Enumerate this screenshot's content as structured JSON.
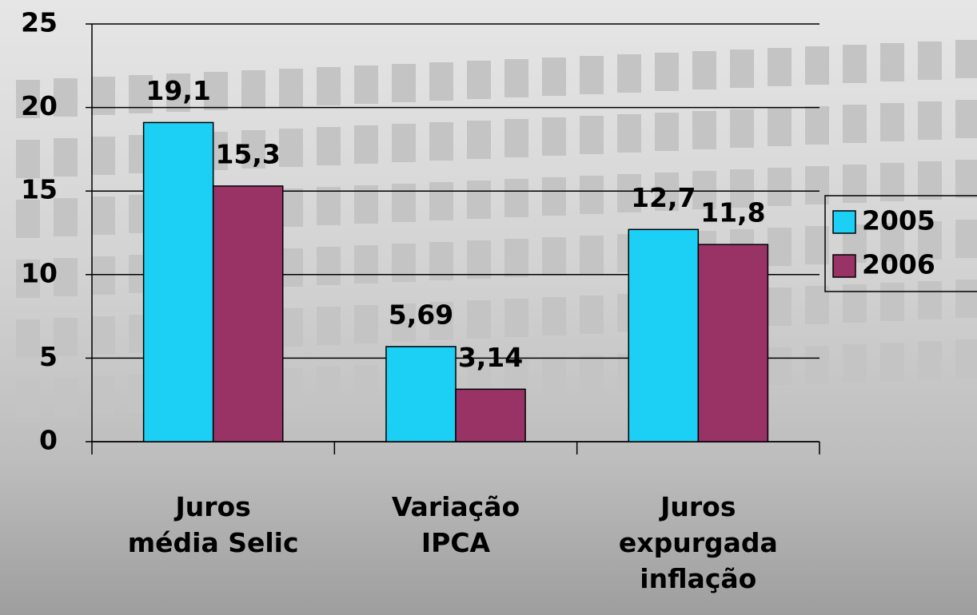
{
  "chart_data": {
    "type": "bar",
    "categories": [
      "Juros\nmédia Selic",
      "Variação\nIPCA",
      "Juros\nexpurgada\ninflação"
    ],
    "series": [
      {
        "name": "2005",
        "color": "#1ccff5",
        "values": [
          19.1,
          5.69,
          12.7
        ],
        "value_labels": [
          "19,1",
          "5,69",
          "12,7"
        ]
      },
      {
        "name": "2006",
        "color": "#993366",
        "values": [
          15.3,
          3.14,
          11.8
        ],
        "value_labels": [
          "15,3",
          "3,14",
          "11,8"
        ]
      }
    ],
    "ylim": [
      0,
      25
    ],
    "yticks": [
      0,
      5,
      10,
      15,
      20,
      25
    ],
    "grid": true,
    "legend": "right"
  }
}
